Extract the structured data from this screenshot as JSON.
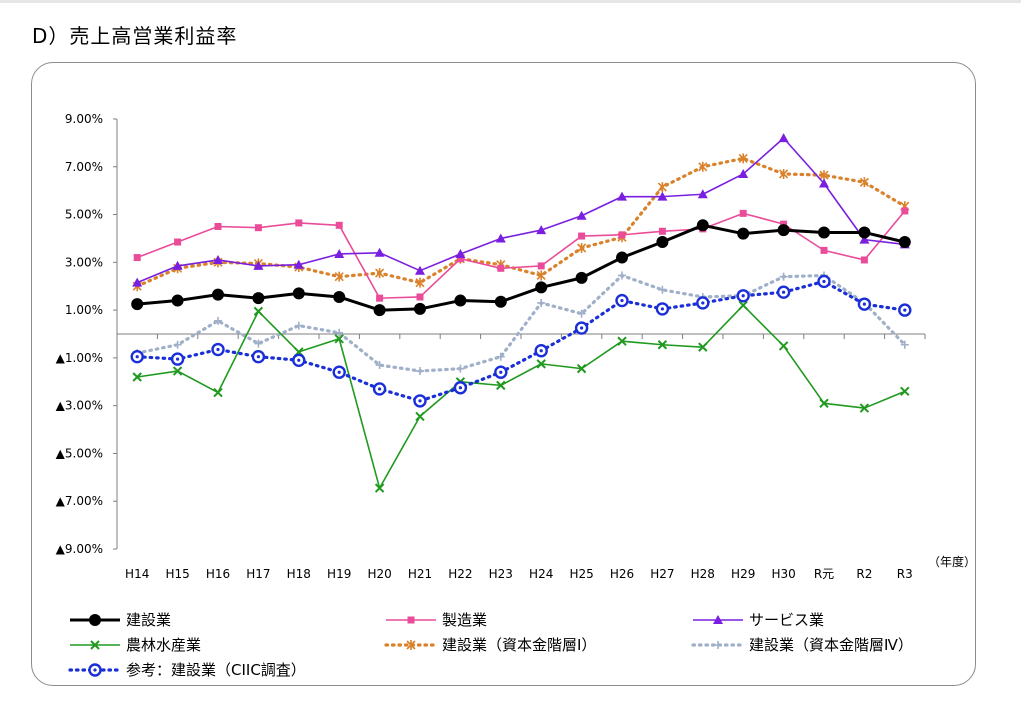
{
  "heading": "D）売上高営業利益率",
  "chart_data": {
    "type": "line",
    "title": "D）売上高営業利益率",
    "x_unit_label": "（年度）",
    "categories": [
      "H14",
      "H15",
      "H16",
      "H17",
      "H18",
      "H19",
      "H20",
      "H21",
      "H22",
      "H23",
      "H24",
      "H25",
      "H26",
      "H27",
      "H28",
      "H29",
      "H30",
      "R元",
      "R2",
      "R3"
    ],
    "y_tick_labels": [
      "9.00%",
      "7.00%",
      "5.00%",
      "3.00%",
      "1.00%",
      "▲1.00%",
      "▲3.00%",
      "▲5.00%",
      "▲7.00%",
      "▲9.00%"
    ],
    "y_tick_values": [
      9,
      7,
      5,
      3,
      1,
      -1,
      -3,
      -5,
      -7,
      -9
    ],
    "ylim": [
      -9,
      9
    ],
    "y_unit": "%",
    "zero_line": true,
    "grid": false,
    "legend_position": "bottom",
    "series": [
      {
        "name": "建設業",
        "color": "#000000",
        "marker": "circle",
        "style": "solid",
        "values": [
          1.25,
          1.4,
          1.65,
          1.5,
          1.7,
          1.55,
          1.0,
          1.05,
          1.4,
          1.35,
          1.95,
          2.35,
          3.2,
          3.85,
          4.55,
          4.2,
          4.35,
          4.25,
          4.25,
          3.85
        ]
      },
      {
        "name": "製造業",
        "color": "#ea4c9a",
        "marker": "square",
        "style": "solid",
        "values": [
          3.2,
          3.85,
          4.5,
          4.45,
          4.65,
          4.55,
          1.5,
          1.55,
          3.15,
          2.75,
          2.85,
          4.1,
          4.15,
          4.3,
          4.4,
          5.05,
          4.6,
          3.5,
          3.1,
          5.15
        ]
      },
      {
        "name": "サービス業",
        "color": "#7a1fe0",
        "marker": "triangle",
        "style": "solid",
        "values": [
          2.15,
          2.85,
          3.1,
          2.85,
          2.9,
          3.35,
          3.4,
          2.65,
          3.35,
          4.0,
          4.35,
          4.95,
          5.75,
          5.75,
          5.85,
          6.7,
          8.2,
          6.3,
          3.95,
          3.75
        ]
      },
      {
        "name": "農林水産業",
        "color": "#1f9a1f",
        "marker": "x",
        "style": "solid",
        "values": [
          -1.8,
          -1.55,
          -2.45,
          0.95,
          -0.75,
          -0.2,
          -6.45,
          -3.45,
          -2.0,
          -2.15,
          -1.25,
          -1.45,
          -0.3,
          -0.45,
          -0.55,
          1.2,
          -0.5,
          -2.9,
          -3.1,
          -2.4
        ]
      },
      {
        "name": "建設業（資本金階層Ⅰ）",
        "color": "#d9822b",
        "marker": "asterisk",
        "style": "dotted",
        "values": [
          2.0,
          2.75,
          3.0,
          2.95,
          2.8,
          2.4,
          2.55,
          2.15,
          3.15,
          2.9,
          2.45,
          3.6,
          4.05,
          6.15,
          7.0,
          7.35,
          6.7,
          6.65,
          6.35,
          5.35
        ]
      },
      {
        "name": "建設業（資本金階層Ⅳ）",
        "color": "#9fb0c8",
        "marker": "plus",
        "style": "dotted",
        "values": [
          -0.8,
          -0.45,
          0.55,
          -0.4,
          0.35,
          0.05,
          -1.3,
          -1.55,
          -1.45,
          -0.95,
          1.3,
          0.85,
          2.45,
          1.85,
          1.55,
          1.6,
          2.4,
          2.45,
          1.3,
          -0.45
        ]
      },
      {
        "name": "参考：建設業（CIIC調査）",
        "color": "#1a2fd8",
        "marker": "ring",
        "style": "dotted",
        "values": [
          -0.95,
          -1.05,
          -0.65,
          -0.95,
          -1.1,
          -1.6,
          -2.3,
          -2.8,
          -2.25,
          -1.6,
          -0.7,
          0.25,
          1.4,
          1.05,
          1.3,
          1.6,
          1.75,
          2.2,
          1.25,
          1.0
        ]
      }
    ]
  }
}
